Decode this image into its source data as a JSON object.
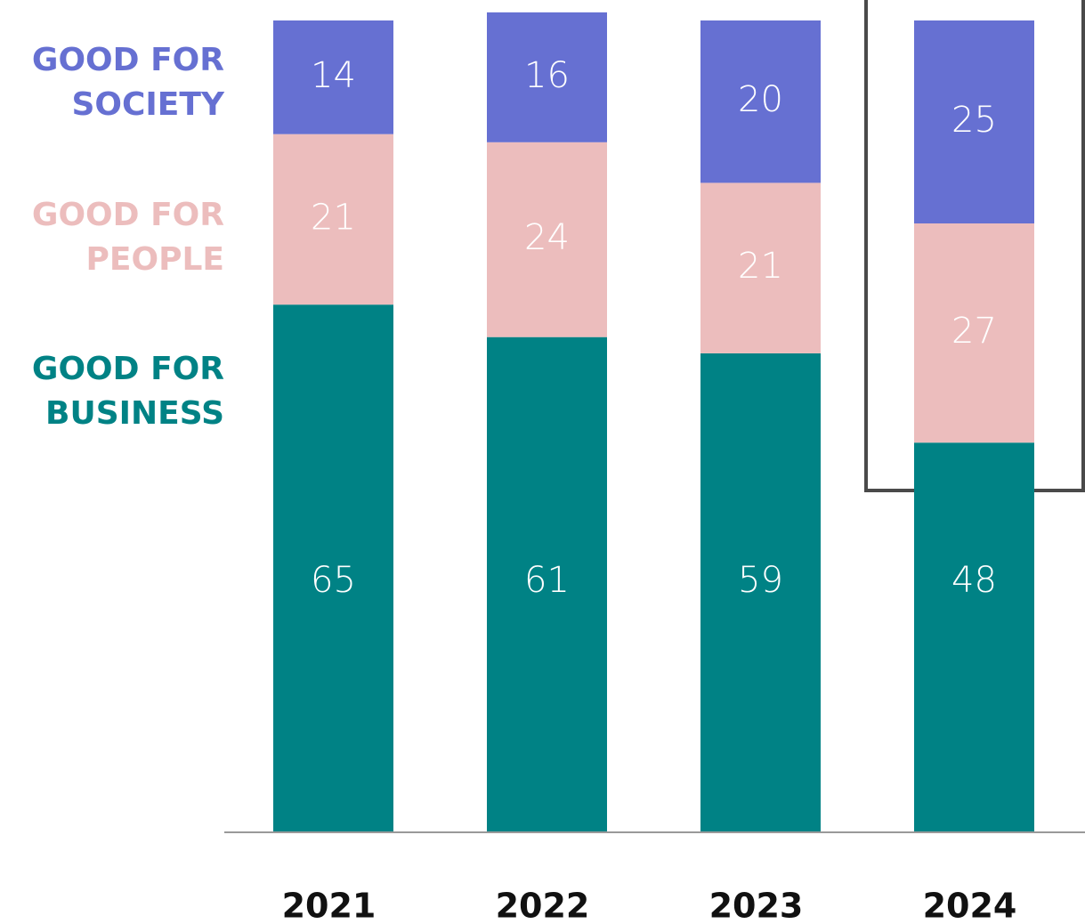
{
  "chart_data": {
    "type": "stacked_bar",
    "categories": [
      "2021",
      "2022",
      "2023",
      "2024"
    ],
    "series": [
      {
        "name": "GOOD FOR BUSINESS",
        "color": "#008285",
        "values": [
          65,
          61,
          59,
          48
        ]
      },
      {
        "name": "GOOD FOR PEOPLE",
        "color": "#ecbdbd",
        "values": [
          21,
          24,
          21,
          27
        ]
      },
      {
        "name": "GOOD FOR SOCIETY",
        "color": "#6670d2",
        "values": [
          14,
          16,
          20,
          25
        ]
      }
    ],
    "ylim": [
      0,
      100
    ]
  }
}
